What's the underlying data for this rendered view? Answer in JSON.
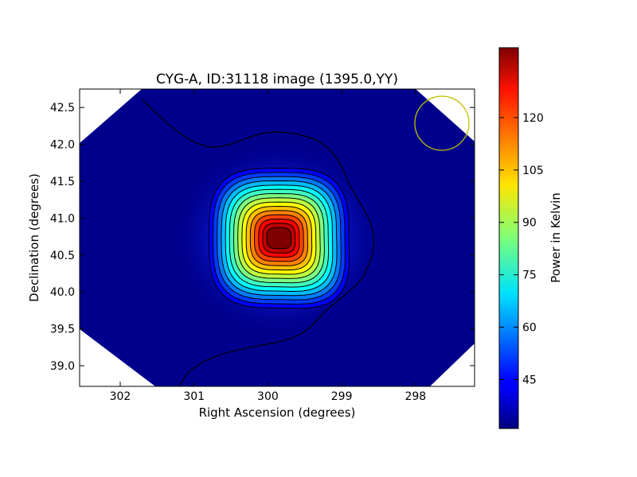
{
  "chart_data": {
    "type": "heatmap",
    "title": "CYG-A, ID:31118 image (1395.0,YY)",
    "xlabel": "Right Ascension (degrees)",
    "ylabel": "Declination (degrees)",
    "xlim": [
      302.55,
      297.2
    ],
    "ylim": [
      38.72,
      42.75
    ],
    "x_inverted": true,
    "x_ticks": [
      "302",
      "301",
      "300",
      "299",
      "298"
    ],
    "y_ticks": [
      "39.0",
      "39.5",
      "40.0",
      "40.5",
      "41.0",
      "41.5",
      "42.0",
      "42.5"
    ],
    "peak": {
      "ra": 299.85,
      "dec": 40.73,
      "value": 140
    },
    "background_value": 31,
    "colormap": "jet",
    "contour_count": 15,
    "beam_circle": {
      "ra": 297.65,
      "dec": 42.28,
      "color": "#bfbf00"
    },
    "colorbar": {
      "label": "Power in Kelvin",
      "range": [
        31,
        140
      ],
      "ticks": [
        "45",
        "60",
        "75",
        "90",
        "105",
        "120"
      ]
    }
  }
}
